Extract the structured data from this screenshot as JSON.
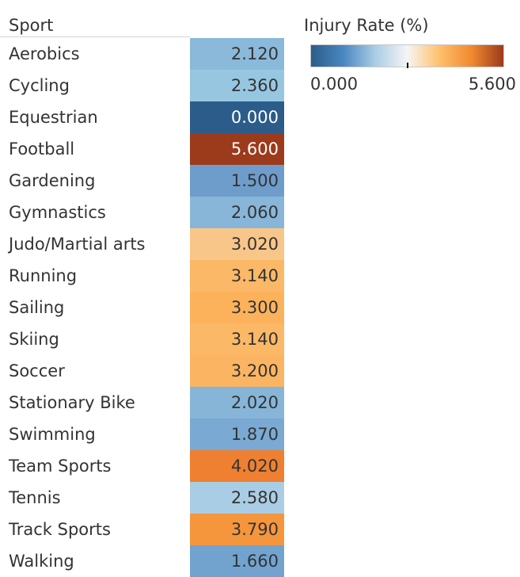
{
  "table": {
    "row_header": "Sport"
  },
  "legend": {
    "title": "Injury Rate (%)",
    "min_label": "0.000",
    "max_label": "5.600",
    "midpoint": 2.8,
    "color_stops": [
      "#2b5c8a",
      "#4a86c0",
      "#a9cde4",
      "#f5f5f5",
      "#ffc06c",
      "#f08a30",
      "#9c3a1c"
    ]
  },
  "chart_data": {
    "type": "heatmap",
    "title": "",
    "measure": "Injury Rate (%)",
    "row_dimension": "Sport",
    "color_range": [
      0,
      5.6
    ],
    "rows": [
      {
        "label": "Aerobics",
        "value": 2.12,
        "display": "2.120",
        "color": "#8ab9da"
      },
      {
        "label": "Cycling",
        "value": 2.36,
        "display": "2.360",
        "color": "#97c6e1"
      },
      {
        "label": "Equestrian",
        "value": 0.0,
        "display": "0.000",
        "color": "#2b5c8a"
      },
      {
        "label": "Football",
        "value": 5.6,
        "display": "5.600",
        "color": "#9c3a1c"
      },
      {
        "label": "Gardening",
        "value": 1.5,
        "display": "1.500",
        "color": "#6e9dcc"
      },
      {
        "label": "Gymnastics",
        "value": 2.06,
        "display": "2.060",
        "color": "#88b6d8"
      },
      {
        "label": "Judo/Martial arts",
        "value": 3.02,
        "display": "3.020",
        "color": "#f9c68a"
      },
      {
        "label": "Running",
        "value": 3.14,
        "display": "3.140",
        "color": "#fbb867"
      },
      {
        "label": "Sailing",
        "value": 3.3,
        "display": "3.300",
        "color": "#fcb25b"
      },
      {
        "label": "Skiing",
        "value": 3.14,
        "display": "3.140",
        "color": "#fbb867"
      },
      {
        "label": "Soccer",
        "value": 3.2,
        "display": "3.200",
        "color": "#fbb562"
      },
      {
        "label": "Stationary Bike",
        "value": 2.02,
        "display": "2.020",
        "color": "#86b5d8"
      },
      {
        "label": "Swimming",
        "value": 1.87,
        "display": "1.870",
        "color": "#7aaad3"
      },
      {
        "label": "Team Sports",
        "value": 4.02,
        "display": "4.020",
        "color": "#ef8031"
      },
      {
        "label": "Tennis",
        "value": 2.58,
        "display": "2.580",
        "color": "#a9cde4"
      },
      {
        "label": "Track Sports",
        "value": 3.79,
        "display": "3.790",
        "color": "#f5963c"
      },
      {
        "label": "Walking",
        "value": 1.66,
        "display": "1.660",
        "color": "#72a3cf"
      }
    ]
  }
}
